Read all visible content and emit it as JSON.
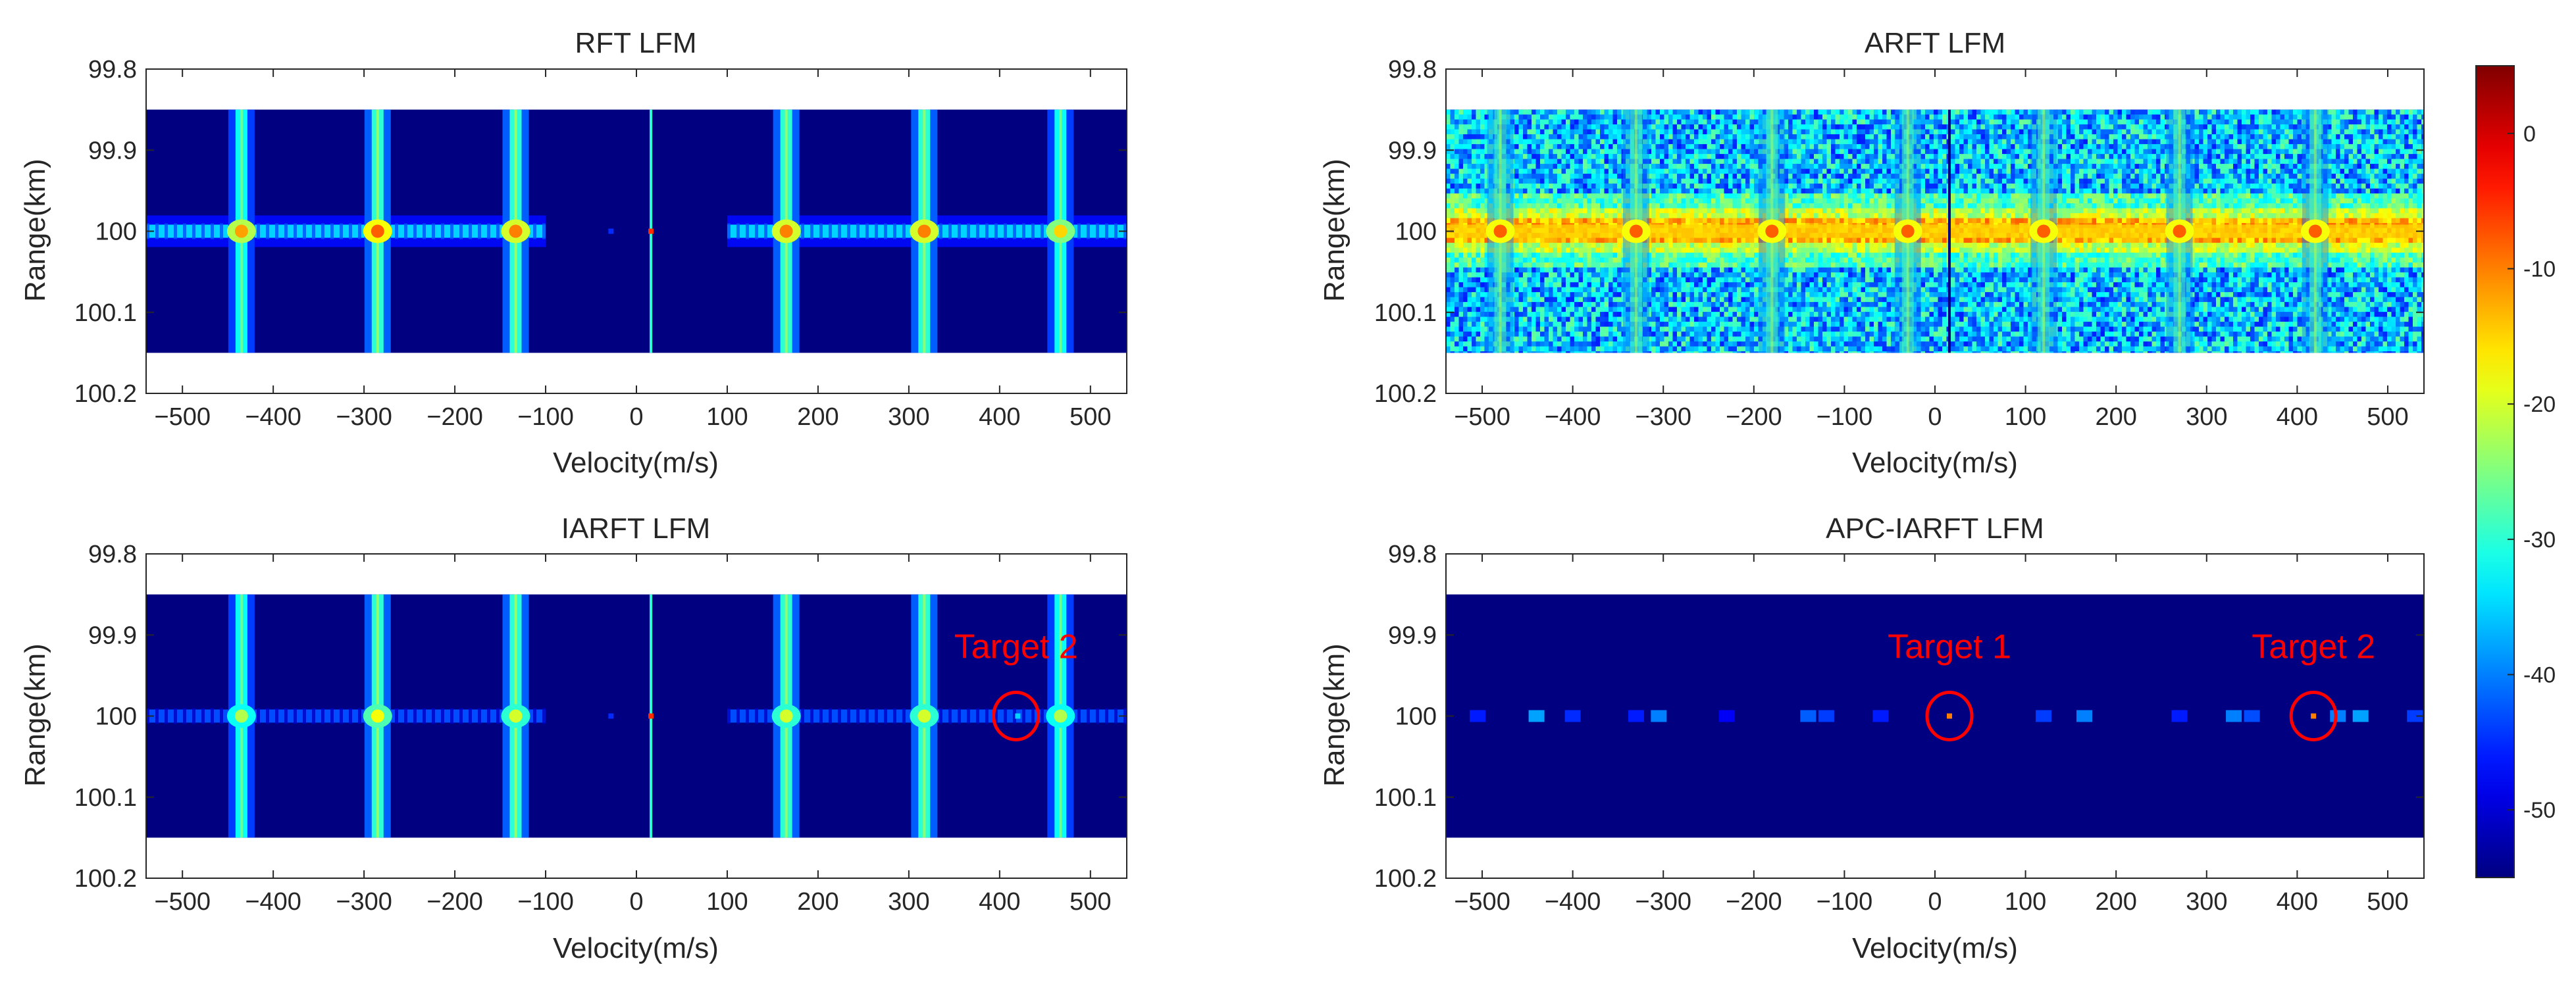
{
  "chart_data": [
    {
      "type": "heatmap",
      "title": "RFT LFM",
      "xlabel": "Velocity(m/s)",
      "ylabel": "Range(km)",
      "xlim": [
        -540,
        540
      ],
      "ylim": [
        99.8,
        100.2
      ],
      "y_reversed": true,
      "data_y_extent": [
        99.85,
        100.15
      ],
      "xticks": [
        -500,
        -400,
        -300,
        -200,
        -100,
        0,
        100,
        200,
        300,
        400,
        500
      ],
      "xtick_labels": [
        "−500",
        "−400",
        "−300",
        "−200",
        "−100",
        "0",
        "100",
        "200",
        "300",
        "400",
        "500"
      ],
      "yticks": [
        99.8,
        99.9,
        100,
        100.1,
        100.2
      ],
      "ytick_labels": [
        "99.8",
        "99.9",
        "100",
        "100.1",
        "100.2"
      ],
      "background": "noise-free",
      "ridge": {
        "range_km": 100.0,
        "segments": [
          [
            -540,
            -100
          ],
          [
            100,
            540
          ]
        ],
        "level_db": -35
      },
      "vertical_peaks": [
        {
          "velocity": -435,
          "peak_db": -12,
          "stem_db": -32
        },
        {
          "velocity": -285,
          "peak_db": -8,
          "stem_db": -30
        },
        {
          "velocity": -133,
          "peak_db": -10,
          "stem_db": -30
        },
        {
          "velocity": 165,
          "peak_db": -10,
          "stem_db": -30
        },
        {
          "velocity": 317,
          "peak_db": -10,
          "stem_db": -30
        },
        {
          "velocity": 467,
          "peak_db": -15,
          "stem_db": -32
        }
      ],
      "thin_lines": [
        {
          "velocity": 16,
          "level_db": -30
        }
      ],
      "specks": [
        {
          "velocity": -28,
          "db": -45
        },
        {
          "velocity": 16,
          "db": -5
        }
      ],
      "annotations": []
    },
    {
      "type": "heatmap",
      "title": "ARFT LFM",
      "xlabel": "Velocity(m/s)",
      "ylabel": "Range(km)",
      "xlim": [
        -540,
        540
      ],
      "ylim": [
        99.8,
        100.2
      ],
      "y_reversed": true,
      "data_y_extent": [
        99.85,
        100.15
      ],
      "xticks": [
        -500,
        -400,
        -300,
        -200,
        -100,
        0,
        100,
        200,
        300,
        400,
        500
      ],
      "xtick_labels": [
        "−500",
        "−400",
        "−300",
        "−200",
        "−100",
        "0",
        "100",
        "200",
        "300",
        "400",
        "500"
      ],
      "yticks": [
        99.8,
        99.9,
        100,
        100.1,
        100.2
      ],
      "ytick_labels": [
        "99.8",
        "99.9",
        "100",
        "100.1",
        "100.2"
      ],
      "background": "noisy",
      "ridge": {
        "range_km": 100.0,
        "segments": [
          [
            -540,
            540
          ]
        ],
        "level_db": -15
      },
      "vertical_peaks": [
        {
          "velocity": -480,
          "peak_db": -8,
          "stem_db": -28
        },
        {
          "velocity": -330,
          "peak_db": -8,
          "stem_db": -28
        },
        {
          "velocity": -180,
          "peak_db": -8,
          "stem_db": -28
        },
        {
          "velocity": -30,
          "peak_db": -8,
          "stem_db": -28
        },
        {
          "velocity": 120,
          "peak_db": -8,
          "stem_db": -28
        },
        {
          "velocity": 270,
          "peak_db": -8,
          "stem_db": -28
        },
        {
          "velocity": 420,
          "peak_db": -8,
          "stem_db": -28
        }
      ],
      "thin_lines": [
        {
          "velocity": 16,
          "level_db": -55
        }
      ],
      "specks": [],
      "annotations": []
    },
    {
      "type": "heatmap",
      "title": "IARFT LFM",
      "xlabel": "Velocity(m/s)",
      "ylabel": "Range(km)",
      "xlim": [
        -540,
        540
      ],
      "ylim": [
        99.8,
        100.2
      ],
      "y_reversed": true,
      "data_y_extent": [
        99.85,
        100.15
      ],
      "xticks": [
        -500,
        -400,
        -300,
        -200,
        -100,
        0,
        100,
        200,
        300,
        400,
        500
      ],
      "xtick_labels": [
        "−500",
        "−400",
        "−300",
        "−200",
        "−100",
        "0",
        "100",
        "200",
        "300",
        "400",
        "500"
      ],
      "yticks": [
        99.8,
        99.9,
        100,
        100.1,
        100.2
      ],
      "ytick_labels": [
        "99.8",
        "99.9",
        "100",
        "100.1",
        "100.2"
      ],
      "background": "noise-free",
      "ridge": {
        "range_km": 100.0,
        "segments": [
          [
            -540,
            -100
          ],
          [
            100,
            540
          ]
        ],
        "level_db": -43
      },
      "vertical_peaks": [
        {
          "velocity": -435,
          "peak_db": -22,
          "stem_db": -32
        },
        {
          "velocity": -285,
          "peak_db": -18,
          "stem_db": -30
        },
        {
          "velocity": -133,
          "peak_db": -20,
          "stem_db": -30
        },
        {
          "velocity": 165,
          "peak_db": -20,
          "stem_db": -30
        },
        {
          "velocity": 317,
          "peak_db": -20,
          "stem_db": -30
        },
        {
          "velocity": 467,
          "peak_db": -22,
          "stem_db": -32
        }
      ],
      "thin_lines": [
        {
          "velocity": 16,
          "level_db": -30
        }
      ],
      "specks": [
        {
          "velocity": -28,
          "db": -45
        },
        {
          "velocity": 16,
          "db": -5
        },
        {
          "velocity": 420,
          "db": -35
        }
      ],
      "annotations": [
        {
          "text": "Target 2",
          "circle_velocity": 418,
          "circle_range_km": 100.0
        }
      ]
    },
    {
      "type": "heatmap",
      "title": "APC-IARFT LFM",
      "xlabel": "Velocity(m/s)",
      "ylabel": "Range(km)",
      "xlim": [
        -540,
        540
      ],
      "ylim": [
        99.8,
        100.2
      ],
      "y_reversed": true,
      "data_y_extent": [
        99.85,
        100.15
      ],
      "xticks": [
        -500,
        -400,
        -300,
        -200,
        -100,
        0,
        100,
        200,
        300,
        400,
        500
      ],
      "xtick_labels": [
        "−500",
        "−400",
        "−300",
        "−200",
        "−100",
        "0",
        "100",
        "200",
        "300",
        "400",
        "500"
      ],
      "yticks": [
        99.8,
        99.9,
        100,
        100.1,
        100.2
      ],
      "ytick_labels": [
        "99.8",
        "99.9",
        "100",
        "100.1",
        "100.2"
      ],
      "background": "noise-free",
      "ridge": {
        "range_km": 100.0,
        "segments": [],
        "level_db": -50
      },
      "blobs": [
        {
          "velocity": -505,
          "db": -46
        },
        {
          "velocity": -440,
          "db": -38
        },
        {
          "velocity": -400,
          "db": -45
        },
        {
          "velocity": -330,
          "db": -46
        },
        {
          "velocity": -305,
          "db": -40
        },
        {
          "velocity": -230,
          "db": -48
        },
        {
          "velocity": -140,
          "db": -42
        },
        {
          "velocity": -120,
          "db": -44
        },
        {
          "velocity": -60,
          "db": -46
        },
        {
          "velocity": 120,
          "db": -44
        },
        {
          "velocity": 165,
          "db": -40
        },
        {
          "velocity": 270,
          "db": -46
        },
        {
          "velocity": 330,
          "db": -40
        },
        {
          "velocity": 350,
          "db": -43
        },
        {
          "velocity": 445,
          "db": -40
        },
        {
          "velocity": 470,
          "db": -38
        },
        {
          "velocity": 530,
          "db": -44
        }
      ],
      "vertical_peaks": [],
      "thin_lines": [],
      "specks": [
        {
          "velocity": 16,
          "db": -10
        },
        {
          "velocity": 418,
          "db": -10
        }
      ],
      "annotations": [
        {
          "text": "Target 1",
          "circle_velocity": 16,
          "circle_range_km": 100.0
        },
        {
          "text": "Target 2",
          "circle_velocity": 418,
          "circle_range_km": 100.0
        }
      ]
    }
  ],
  "colorbar": {
    "colormap": "jet",
    "range_db": [
      -55,
      5
    ],
    "ticks": [
      0,
      -10,
      -20,
      -30,
      -40,
      -50
    ],
    "tick_labels": [
      "0",
      "-10",
      "-20",
      "-30",
      "-40",
      "-50"
    ]
  }
}
